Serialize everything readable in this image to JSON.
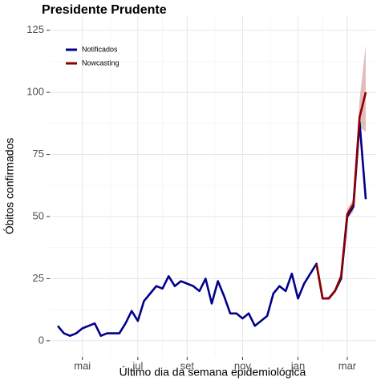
{
  "chart_data": {
    "type": "line",
    "title": "Presidente Prudente",
    "x_label": "Último dia da semana epidemiológica",
    "y_label": "Óbitos confirmados",
    "categories": [
      null,
      null,
      null,
      null,
      "mai",
      null,
      null,
      null,
      null,
      null,
      null,
      null,
      null,
      "jul",
      null,
      null,
      null,
      null,
      null,
      null,
      null,
      "set",
      null,
      null,
      null,
      null,
      null,
      null,
      null,
      null,
      "nov",
      null,
      null,
      null,
      null,
      null,
      null,
      null,
      null,
      "jan",
      null,
      null,
      null,
      null,
      null,
      null,
      null,
      "mar",
      null,
      null,
      null
    ],
    "series": [
      {
        "name": "Notificados",
        "color": "#00008b",
        "values": [
          6,
          3,
          2,
          3,
          5,
          6,
          7,
          2,
          3,
          3,
          3,
          7,
          12,
          8,
          16,
          19,
          22,
          21,
          26,
          22,
          24,
          23,
          22,
          20,
          25,
          15,
          24,
          18,
          11,
          11,
          9,
          11,
          6,
          8,
          10,
          19,
          22,
          20,
          27,
          17,
          23,
          27,
          31,
          17,
          17,
          20,
          25,
          50,
          54,
          88,
          57
        ]
      },
      {
        "name": "Nowcasting",
        "color": "#8b0000",
        "values": [
          null,
          null,
          null,
          null,
          null,
          null,
          null,
          null,
          null,
          null,
          null,
          null,
          null,
          null,
          null,
          null,
          null,
          null,
          null,
          null,
          null,
          null,
          null,
          null,
          null,
          null,
          null,
          null,
          null,
          null,
          null,
          null,
          null,
          null,
          null,
          null,
          null,
          null,
          null,
          null,
          null,
          null,
          31,
          17,
          17,
          20,
          26,
          51,
          55,
          90,
          100
        ]
      }
    ],
    "band": {
      "color": "#c97a7a",
      "lower": [
        null,
        null,
        null,
        null,
        null,
        null,
        null,
        null,
        null,
        null,
        null,
        null,
        null,
        null,
        null,
        null,
        null,
        null,
        null,
        null,
        null,
        null,
        null,
        null,
        null,
        null,
        null,
        null,
        null,
        null,
        null,
        null,
        null,
        null,
        null,
        null,
        null,
        null,
        null,
        null,
        null,
        null,
        31,
        17,
        17,
        20,
        26,
        49,
        52,
        86,
        84
      ],
      "upper": [
        null,
        null,
        null,
        null,
        null,
        null,
        null,
        null,
        null,
        null,
        null,
        null,
        null,
        null,
        null,
        null,
        null,
        null,
        null,
        null,
        null,
        null,
        null,
        null,
        null,
        null,
        null,
        null,
        null,
        null,
        null,
        null,
        null,
        null,
        null,
        null,
        null,
        null,
        null,
        null,
        null,
        null,
        31,
        17,
        18,
        21,
        27,
        53,
        57,
        97,
        119
      ]
    },
    "ylim": [
      -6.5,
      130.7
    ],
    "yticks": [
      0,
      25,
      50,
      75,
      100,
      125
    ],
    "grid": true,
    "legend": "top-left"
  }
}
